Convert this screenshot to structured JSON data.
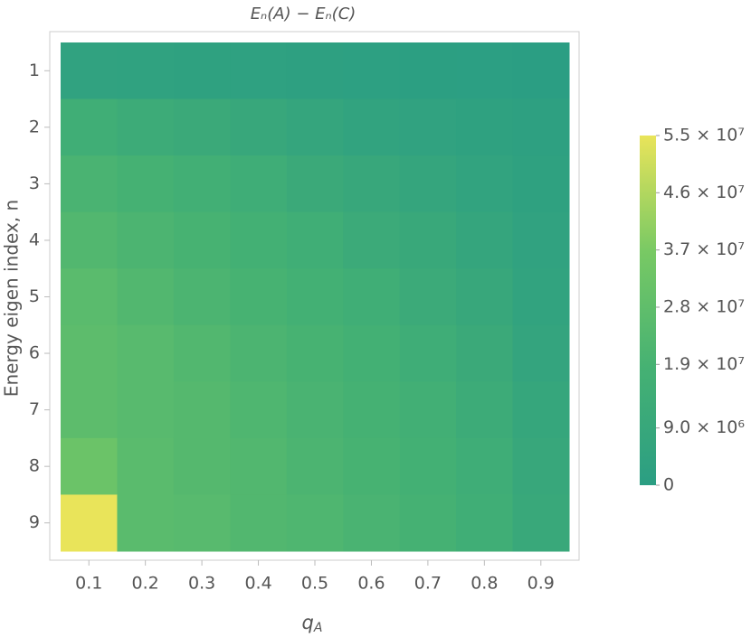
{
  "chart_data": {
    "type": "heatmap",
    "title": "Eₙ(A) − Eₙ(C)",
    "xlabel": {
      "base": "q",
      "sub": "A"
    },
    "ylabel": "Energy eigen index, n",
    "x": [
      0.1,
      0.2,
      0.3,
      0.4,
      0.5,
      0.6,
      0.7,
      0.8,
      0.9
    ],
    "y": [
      1,
      2,
      3,
      4,
      5,
      6,
      7,
      8,
      9
    ],
    "z": [
      [
        4000000,
        3500000,
        3000000,
        2500000,
        2000000,
        1500000,
        1000000,
        500000,
        200000
      ],
      [
        15000000,
        13000000,
        11000000,
        9000000,
        7000000,
        5000000,
        4000000,
        3000000,
        2000000
      ],
      [
        20000000,
        18000000,
        16000000,
        14000000,
        11000000,
        9000000,
        7000000,
        5000000,
        3000000
      ],
      [
        23000000,
        21000000,
        19000000,
        17000000,
        15000000,
        12000000,
        10000000,
        7000000,
        4000000
      ],
      [
        26000000,
        23000000,
        21000000,
        19000000,
        17000000,
        15000000,
        12000000,
        9000000,
        5000000
      ],
      [
        27000000,
        25000000,
        23000000,
        21000000,
        19000000,
        17000000,
        14000000,
        11000000,
        6000000
      ],
      [
        27000000,
        25000000,
        24000000,
        22000000,
        20000000,
        18000000,
        16000000,
        13000000,
        8000000
      ],
      [
        32000000,
        26000000,
        24000000,
        23000000,
        21000000,
        19000000,
        17000000,
        14000000,
        9000000
      ],
      [
        55000000,
        26000000,
        25000000,
        23000000,
        22000000,
        20000000,
        18000000,
        15000000,
        10000000
      ]
    ],
    "xlim": [
      0.05,
      0.95
    ],
    "ylim": [
      0.5,
      9.5
    ],
    "y_inverted": true,
    "xticks": [
      0.1,
      0.2,
      0.3,
      0.4,
      0.5,
      0.6,
      0.7,
      0.8,
      0.9
    ],
    "yticks": [
      1,
      2,
      3,
      4,
      5,
      6,
      7,
      8,
      9
    ],
    "zlim": [
      0,
      55000000
    ],
    "colorscale": [
      "#2b9e83",
      "#45b173",
      "#78c964",
      "#e9e45a"
    ],
    "zticks": [
      0,
      {
        "value": 9000000,
        "label": "9.0 × 10⁶"
      },
      {
        "value": 19000000,
        "label": "1.9 × 10⁷"
      },
      {
        "value": 28000000,
        "label": "2.8 × 10⁷"
      },
      {
        "value": 37000000,
        "label": "3.7 × 10⁷"
      },
      {
        "value": 46000000,
        "label": "4.6 × 10⁷"
      },
      {
        "value": 55000000,
        "label": "5.5 × 10⁷"
      }
    ]
  }
}
